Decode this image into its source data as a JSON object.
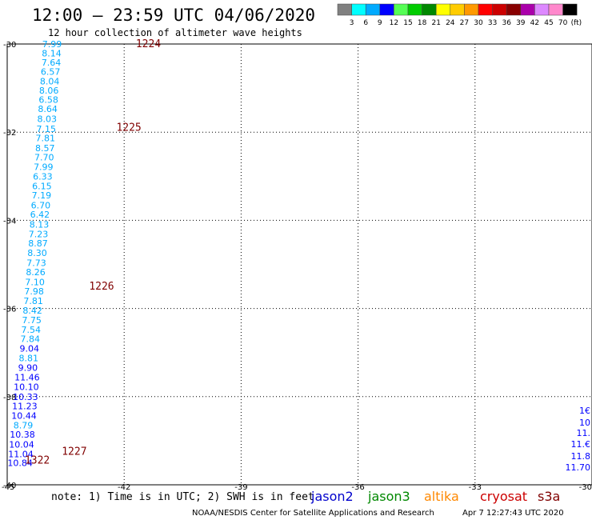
{
  "header": {
    "title": "12:00 – 23:59 UTC 04/06/2020",
    "subtitle": "12 hour collection of altimeter wave heights"
  },
  "colorbar": {
    "colors": [
      "#808080",
      "#00ffff",
      "#00aaff",
      "#0000ff",
      "#55ff55",
      "#00cc00",
      "#008800",
      "#ffff00",
      "#ffcc00",
      "#ff9900",
      "#ff0000",
      "#cc0000",
      "#880000",
      "#aa00aa",
      "#dd88ff",
      "#ff88cc",
      "#000000"
    ],
    "labels": [
      "3",
      "6",
      "9",
      "12",
      "15",
      "18",
      "21",
      "24",
      "27",
      "30",
      "33",
      "36",
      "39",
      "42",
      "45",
      "70"
    ],
    "unit": "(ft)"
  },
  "footer": {
    "note": "note: 1) Time is in UTC; 2) SWH is in feet",
    "credit": "NOAA/NESDIS Center for Satellite Applications and Research",
    "timestamp": "Apr  7 12:27:43 UTC 2020"
  },
  "satellites": [
    {
      "name": "jason2",
      "color": "#0000cc"
    },
    {
      "name": "jason3",
      "color": "#008800"
    },
    {
      "name": "altika",
      "color": "#ff8800"
    },
    {
      "name": "cryosat",
      "color": "#cc0000"
    },
    {
      "name": "s3a",
      "color": "#800000"
    }
  ],
  "chart_data": {
    "type": "scatter",
    "title": "12:00 – 23:59 UTC 04/06/2020",
    "subtitle": "12 hour collection of altimeter wave heights",
    "xlim": [
      -45,
      -30
    ],
    "ylim": [
      -40,
      -30
    ],
    "xticks": [
      -45,
      -42,
      -39,
      -36,
      -33,
      -30
    ],
    "yticks": [
      -30,
      -32,
      -34,
      -36,
      -38,
      -40
    ],
    "xtick_labels": [
      "-45",
      "-42",
      "-39",
      "-36",
      "-33",
      "-30"
    ],
    "ytick_labels": [
      "-30",
      "-32",
      "-34",
      "-36",
      "-38",
      "-40"
    ],
    "grid": true,
    "unit": "ft",
    "points": [
      {
        "lon": -43.85,
        "lat": -30.0,
        "swh": "7.99",
        "color": "#00aaff"
      },
      {
        "lon": -43.86,
        "lat": -30.21,
        "swh": "8.14",
        "color": "#00aaff"
      },
      {
        "lon": -43.87,
        "lat": -30.42,
        "swh": "7.64",
        "color": "#00aaff"
      },
      {
        "lon": -43.89,
        "lat": -30.63,
        "swh": "6.57",
        "color": "#00aaff"
      },
      {
        "lon": -43.91,
        "lat": -30.84,
        "swh": "8.04",
        "color": "#00aaff"
      },
      {
        "lon": -43.93,
        "lat": -31.05,
        "swh": "8.06",
        "color": "#00aaff"
      },
      {
        "lon": -43.94,
        "lat": -31.26,
        "swh": "6.58",
        "color": "#00aaff"
      },
      {
        "lon": -43.96,
        "lat": -31.47,
        "swh": "8.64",
        "color": "#00aaff"
      },
      {
        "lon": -43.98,
        "lat": -31.7,
        "swh": "8.03",
        "color": "#00aaff"
      },
      {
        "lon": -44.0,
        "lat": -31.92,
        "swh": "7.15",
        "color": "#00aaff"
      },
      {
        "lon": -44.02,
        "lat": -32.13,
        "swh": "7.81",
        "color": "#00aaff"
      },
      {
        "lon": -44.03,
        "lat": -32.36,
        "swh": "8.57",
        "color": "#00aaff"
      },
      {
        "lon": -44.05,
        "lat": -32.57,
        "swh": "7.70",
        "color": "#00aaff"
      },
      {
        "lon": -44.07,
        "lat": -32.79,
        "swh": "7.99",
        "color": "#00aaff"
      },
      {
        "lon": -44.09,
        "lat": -33.0,
        "swh": "6.33",
        "color": "#00aaff"
      },
      {
        "lon": -44.11,
        "lat": -33.22,
        "swh": "6.15",
        "color": "#00aaff"
      },
      {
        "lon": -44.12,
        "lat": -33.43,
        "swh": "7.19",
        "color": "#00aaff"
      },
      {
        "lon": -44.14,
        "lat": -33.66,
        "swh": "6.70",
        "color": "#00aaff"
      },
      {
        "lon": -44.16,
        "lat": -33.87,
        "swh": "6.42",
        "color": "#00aaff"
      },
      {
        "lon": -44.18,
        "lat": -34.09,
        "swh": "8.13",
        "color": "#00aaff"
      },
      {
        "lon": -44.2,
        "lat": -34.31,
        "swh": "7.23",
        "color": "#00aaff"
      },
      {
        "lon": -44.21,
        "lat": -34.52,
        "swh": "8.87",
        "color": "#00aaff"
      },
      {
        "lon": -44.23,
        "lat": -34.74,
        "swh": "8.30",
        "color": "#00aaff"
      },
      {
        "lon": -44.25,
        "lat": -34.96,
        "swh": "7.73",
        "color": "#00aaff"
      },
      {
        "lon": -44.27,
        "lat": -35.17,
        "swh": "8.26",
        "color": "#00aaff"
      },
      {
        "lon": -44.29,
        "lat": -35.4,
        "swh": "7.10",
        "color": "#00aaff"
      },
      {
        "lon": -44.31,
        "lat": -35.61,
        "swh": "7.98",
        "color": "#00aaff"
      },
      {
        "lon": -44.33,
        "lat": -35.83,
        "swh": "7.81",
        "color": "#00aaff"
      },
      {
        "lon": -44.35,
        "lat": -36.04,
        "swh": "8.42",
        "color": "#00aaff"
      },
      {
        "lon": -44.37,
        "lat": -36.26,
        "swh": "7.75",
        "color": "#00aaff"
      },
      {
        "lon": -44.39,
        "lat": -36.48,
        "swh": "7.54",
        "color": "#00aaff"
      },
      {
        "lon": -44.41,
        "lat": -36.69,
        "swh": "7.84",
        "color": "#00aaff"
      },
      {
        "lon": -44.43,
        "lat": -36.91,
        "swh": "9.04",
        "color": "#0000ff"
      },
      {
        "lon": -44.45,
        "lat": -37.12,
        "swh": "8.81",
        "color": "#00aaff"
      },
      {
        "lon": -44.47,
        "lat": -37.34,
        "swh": "9.90",
        "color": "#0000ff"
      },
      {
        "lon": -44.49,
        "lat": -37.56,
        "swh": "11.46",
        "color": "#0000ff"
      },
      {
        "lon": -44.51,
        "lat": -37.78,
        "swh": "10.10",
        "color": "#0000ff"
      },
      {
        "lon": -44.53,
        "lat": -38.0,
        "swh": "10.33",
        "color": "#0000ff"
      },
      {
        "lon": -44.55,
        "lat": -38.21,
        "swh": "11.23",
        "color": "#0000ff"
      },
      {
        "lon": -44.57,
        "lat": -38.43,
        "swh": "10.44",
        "color": "#0000ff"
      },
      {
        "lon": -44.59,
        "lat": -38.65,
        "swh": "8.79",
        "color": "#00aaff"
      },
      {
        "lon": -44.61,
        "lat": -38.86,
        "swh": "10.38",
        "color": "#0000ff"
      },
      {
        "lon": -44.63,
        "lat": -39.08,
        "swh": "10.04",
        "color": "#0000ff"
      },
      {
        "lon": -44.65,
        "lat": -39.3,
        "swh": "11.04",
        "color": "#0000ff"
      },
      {
        "lon": -44.67,
        "lat": -39.5,
        "swh": "10.84",
        "color": "#0000ff"
      }
    ],
    "edge_values": [
      "1€",
      "10",
      "11.",
      "11.€",
      "11.8",
      "11.70"
    ],
    "pass_labels": [
      {
        "label": "1224",
        "lon": -41.7,
        "lat": -30.0
      },
      {
        "label": "1225",
        "lon": -42.2,
        "lat": -31.9
      },
      {
        "label": "1226",
        "lon": -42.9,
        "lat": -35.5
      },
      {
        "label": "1227",
        "lon": -43.6,
        "lat": -39.25
      },
      {
        "label": "1322",
        "lon": -44.55,
        "lat": -39.45,
        "color": "#008800"
      }
    ]
  }
}
